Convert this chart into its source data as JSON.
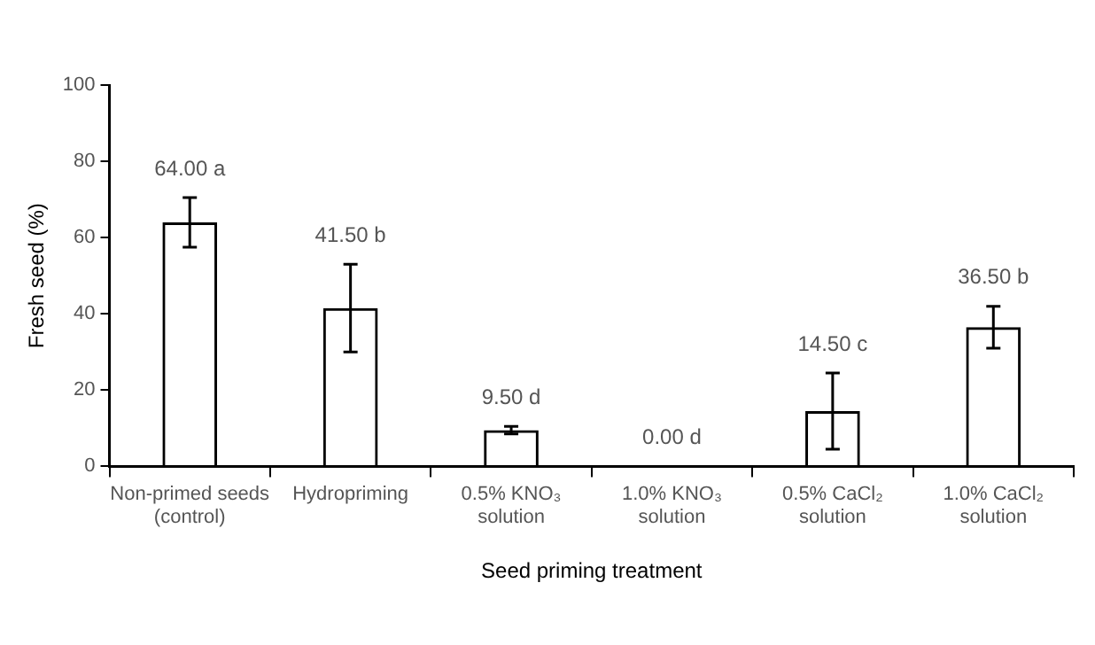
{
  "chart_data": {
    "type": "bar",
    "xlabel": "Seed priming treatment",
    "ylabel": "Fresh seed (%)",
    "categories": [
      "Non-primed seeds\n(control)",
      "Hydropriming",
      "0.5% KNO₃\nsolution",
      "1.0% KNO₃\nsolution",
      "0.5% CaCl₂\nsolution",
      "1.0% CaCl₂\nsolution"
    ],
    "values": [
      64,
      41.5,
      9.5,
      0,
      14.5,
      36.5
    ],
    "errors": [
      6.5,
      11.5,
      1,
      null,
      10,
      5.5
    ],
    "value_labels": [
      "64.00 a",
      "41.50 b",
      "9.50 d",
      "0.00 d",
      "14.50 c",
      "36.50 b"
    ],
    "color": "#000000",
    "ylim": [
      0,
      100
    ],
    "yticks": [
      0,
      20,
      40,
      60,
      80,
      100
    ],
    "grid": false,
    "legend": false
  }
}
